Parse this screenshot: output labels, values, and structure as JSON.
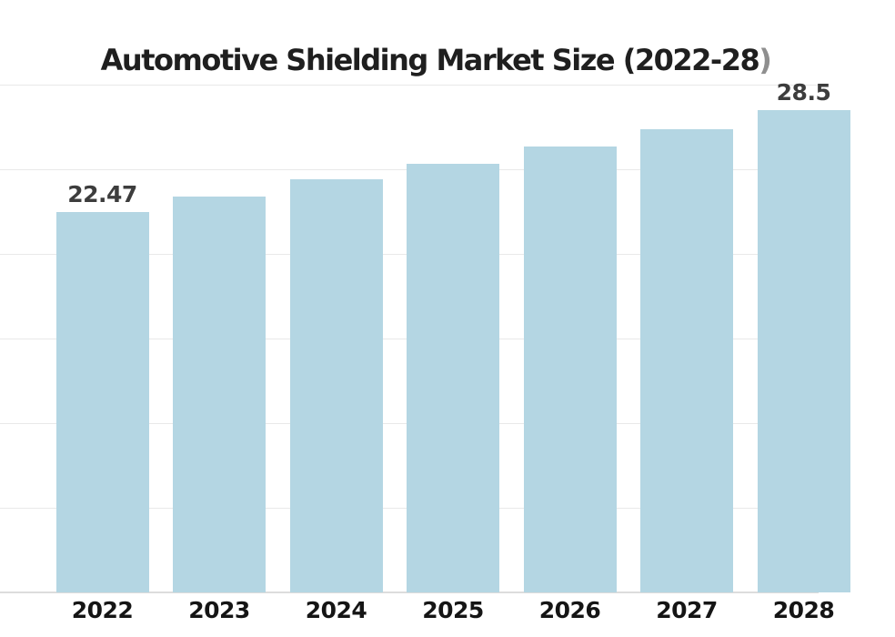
{
  "header": {
    "title_main": "Automotive Shielding Market Size (2022-28",
    "title_suffix": ")"
  },
  "chart_data": {
    "type": "bar",
    "title": "Automotive Shielding Market Size (2022-28)",
    "categories": [
      "2022",
      "2023",
      "2024",
      "2025",
      "2026",
      "2027",
      "2028"
    ],
    "values": [
      22.47,
      23.39,
      24.41,
      25.32,
      26.34,
      27.37,
      28.5
    ],
    "bar_labels": [
      "22.47",
      "",
      "",
      "",
      "",
      "",
      "28.5"
    ],
    "xlabel": "",
    "ylabel": "",
    "ylim": [
      0,
      30
    ],
    "grid_step": 5,
    "grid": true,
    "legend": false,
    "y_axis_labels_visible": false,
    "clipped_at_right_edge": true,
    "colors": {
      "bar": "#b4d6e3",
      "title": "#1f1f1f",
      "title_suffix": "#8f8f8f",
      "value_label": "#3d3d3d",
      "x_tick": "#151515",
      "gridline": "#e9e9e9",
      "axis_line": "#dcdcdc",
      "background": "#ffffff"
    }
  }
}
